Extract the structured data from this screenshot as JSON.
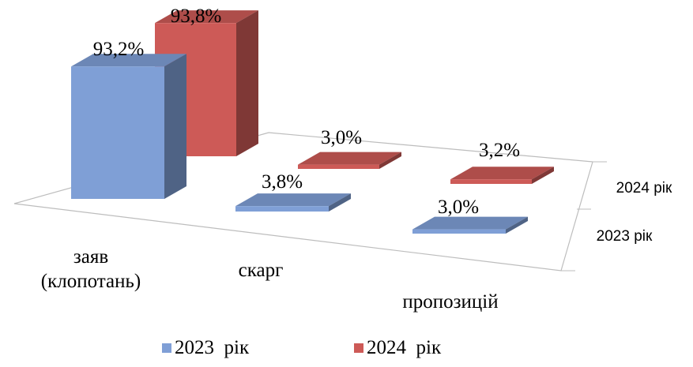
{
  "chart_data": {
    "type": "bar",
    "style": "3d-clustered",
    "categories": [
      "заяв\n(клопотань)",
      "скарг",
      "пропозицій"
    ],
    "depth_labels": [
      "2024 рік",
      "2023 рік"
    ],
    "series": [
      {
        "name": "2023  рік",
        "values": [
          93.2,
          3.8,
          3.0
        ],
        "labels": [
          "93,2%",
          "3,8%",
          "3,0%"
        ],
        "color": "#7f9fd6"
      },
      {
        "name": "2024  рік",
        "values": [
          93.8,
          3.0,
          3.2
        ],
        "labels": [
          "93,8%",
          "3,0%",
          "3,2%"
        ],
        "color": "#cd5a57"
      }
    ],
    "ylim": [
      0,
      100
    ],
    "legend_position": "bottom"
  }
}
